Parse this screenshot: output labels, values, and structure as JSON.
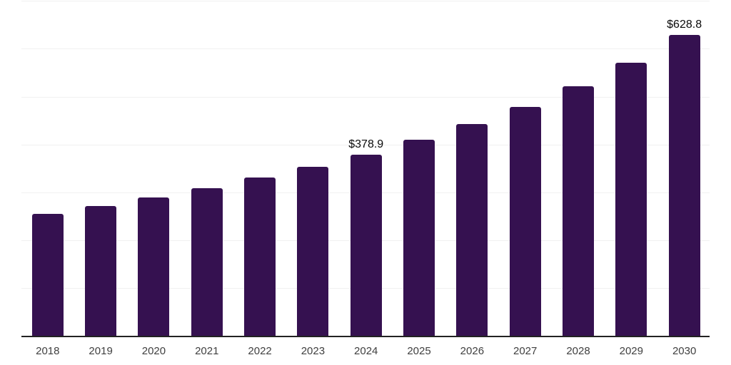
{
  "page": {
    "background_color": "#ffffff"
  },
  "chart_data": {
    "type": "bar",
    "title": "",
    "xlabel": "",
    "ylabel": "",
    "categories": [
      "2018",
      "2019",
      "2020",
      "2021",
      "2022",
      "2023",
      "2024",
      "2025",
      "2026",
      "2027",
      "2028",
      "2029",
      "2030"
    ],
    "values": [
      254.8,
      270.6,
      289.3,
      309.2,
      330.4,
      352.7,
      378.9,
      409.6,
      442.2,
      478.5,
      521.0,
      571.4,
      628.8
    ],
    "data_labels": [
      "",
      "",
      "",
      "",
      "",
      "",
      "$378.9",
      "",
      "",
      "",
      "",
      "",
      "$628.8"
    ],
    "ylim": [
      0,
      700
    ],
    "grid": {
      "show": true,
      "interval": 100,
      "color": "#f1f1f1"
    },
    "legend_position": "none",
    "bar_color": "#351150",
    "axis_line_color": "#222222",
    "tick_label_color": "#3f3f3f",
    "data_label_color": "#0a0a0a"
  }
}
